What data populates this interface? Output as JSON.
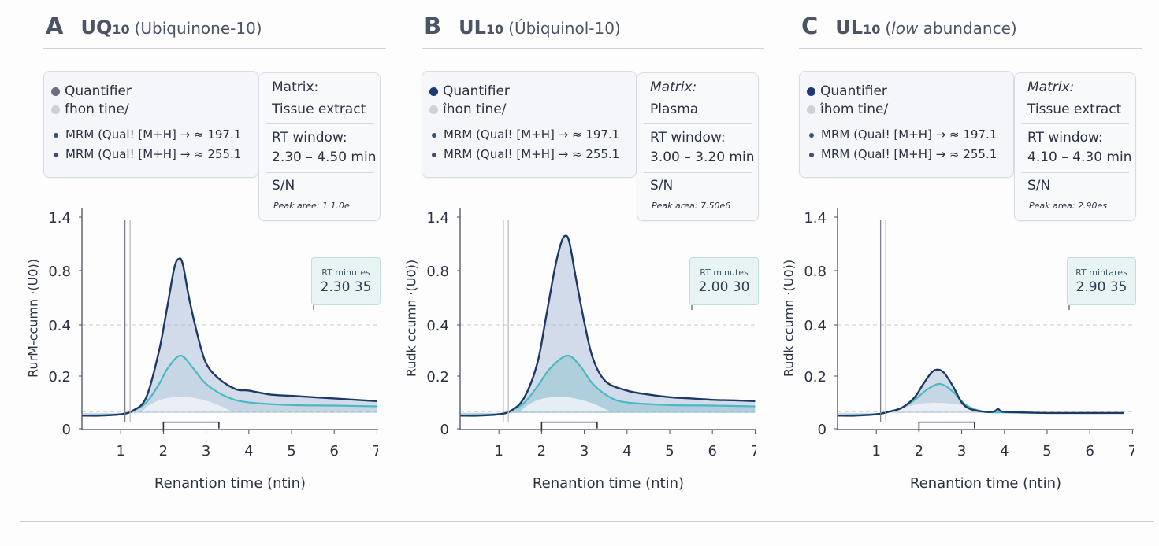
{
  "colors": {
    "quantifier": "#1d3a66",
    "qualifier": "#4bb8c4",
    "legend_dot_a": "#6b7080",
    "legend_dot_bc": "#1f3a6e",
    "pale": "#c9ccd3"
  },
  "panels": [
    {
      "letter": "A",
      "formula": "UQ",
      "formula_sub": "10",
      "name_prefix": "(Ubiquinone-10)",
      "name_italic": "",
      "name_rest": "",
      "legend": {
        "quantifier": "Quantifier",
        "second": "fhon tine/",
        "mrm1": "MRM (Qual! [M+H] → ≈ 197.1",
        "mrm2": "MRM (Qual! [M+H] → ≈ 255.1"
      },
      "info": {
        "matrix_label": "Matrix:",
        "matrix_italic": false,
        "matrix_value": "Tissue extract",
        "rt_label": "RT window:",
        "rt_value": "2.30 – 4.50 min",
        "sn_label": "S/N",
        "peak_area": "Peak aree: 1.1.0e"
      },
      "rt_box": {
        "label": "RT minutes",
        "value": "2.30 35"
      }
    },
    {
      "letter": "B",
      "formula": "UL",
      "formula_sub": "10",
      "name_prefix": "(Úbiquinol-10)",
      "name_italic": "",
      "name_rest": "",
      "legend": {
        "quantifier": "Quantifier",
        "second": "îhon tine/",
        "mrm1": "MRM (Qual! [M+H] → ≈ 197.1",
        "mrm2": "MRM (Qual! [M+H] → ≈ 255.1"
      },
      "info": {
        "matrix_label": "Matrix:",
        "matrix_italic": true,
        "matrix_value": "Plasma",
        "rt_label": "RT window:",
        "rt_value": "3.00 – 3.20 min",
        "sn_label": "S/N",
        "peak_area": "Peak area: 7.50e6"
      },
      "rt_box": {
        "label": "RT minutes",
        "value": "2.00 30"
      }
    },
    {
      "letter": "C",
      "formula": "UL",
      "formula_sub": "10",
      "name_prefix": "(",
      "name_italic": "low",
      "name_rest": " abundance)",
      "legend": {
        "quantifier": "Quantifier",
        "second": "îhom tine/",
        "mrm1": "MRM (Qual! [M+H] → ≈ 197.1",
        "mrm2": "MRM (Qual! [M+H] → ≈ 255.1"
      },
      "info": {
        "matrix_label": "Matrix:",
        "matrix_italic": true,
        "matrix_value": "Tissue extract",
        "rt_label": "RT window:",
        "rt_value": "4.10 – 4.30 min",
        "sn_label": "S/N",
        "peak_area": "Peak area: 2.90es"
      },
      "rt_box": {
        "label": "RT mintares",
        "value": "2.90 35"
      }
    }
  ],
  "chart_data": [
    {
      "type": "line",
      "xlabel": "Renantion time (ntin)",
      "ylabel": "RurM-ccumn ·(U0))",
      "xlim": [
        0,
        7
      ],
      "xticks": [
        1,
        2,
        3,
        4,
        5,
        6,
        7
      ],
      "yticks": [
        0,
        0.2,
        0.4,
        0.8,
        1.4
      ],
      "ytick_labels": [
        "0",
        "0.2",
        "0.4",
        "0.8",
        "1.4"
      ],
      "grid": "dashed at 0.4",
      "markers": {
        "vlines": [
          1.1,
          1.22
        ],
        "bracket": [
          2.0,
          3.3
        ]
      },
      "series": [
        {
          "x": [
            0.1,
            0.5,
            1.0,
            1.3,
            1.6,
            1.9,
            2.1,
            2.25,
            2.35,
            2.45,
            2.6,
            2.8,
            3.0,
            3.3,
            3.7,
            4.0,
            4.5,
            5,
            5.5,
            6,
            6.5,
            7
          ],
          "y": [
            0.05,
            0.05,
            0.055,
            0.07,
            0.12,
            0.3,
            0.55,
            0.82,
            0.93,
            0.88,
            0.6,
            0.36,
            0.25,
            0.19,
            0.15,
            0.145,
            0.13,
            0.125,
            0.12,
            0.115,
            0.11,
            0.105
          ]
        },
        {
          "x": [
            0.1,
            1.0,
            1.3,
            1.6,
            1.9,
            2.1,
            2.4,
            2.7,
            3.0,
            3.5,
            4,
            5,
            6,
            7
          ],
          "y": [
            0.05,
            0.055,
            0.07,
            0.1,
            0.17,
            0.23,
            0.28,
            0.23,
            0.17,
            0.12,
            0.1,
            0.09,
            0.088,
            0.085
          ]
        }
      ]
    },
    {
      "type": "line",
      "xlabel": "Renantion time (ntin)",
      "ylabel": "Rudk ccumn ·(U0))",
      "xlim": [
        0,
        7
      ],
      "xticks": [
        1,
        2,
        3,
        4,
        5,
        6,
        7
      ],
      "yticks": [
        0,
        0.2,
        0.4,
        0.8,
        1.4
      ],
      "ytick_labels": [
        "0",
        "0.2",
        "0.4",
        "0.8",
        "1.4"
      ],
      "grid": "dashed at 0.4",
      "markers": {
        "vlines": [
          1.1,
          1.22
        ],
        "bracket": [
          2.0,
          3.3
        ]
      },
      "series": [
        {
          "x": [
            0.1,
            0.5,
            1.0,
            1.3,
            1.6,
            1.9,
            2.1,
            2.3,
            2.45,
            2.55,
            2.65,
            2.8,
            3.0,
            3.2,
            3.5,
            4.0,
            4.5,
            5,
            5.5,
            6,
            6.5,
            7
          ],
          "y": [
            0.05,
            0.05,
            0.055,
            0.07,
            0.12,
            0.25,
            0.45,
            0.8,
            1.1,
            1.19,
            1.12,
            0.75,
            0.42,
            0.27,
            0.18,
            0.145,
            0.13,
            0.12,
            0.115,
            0.11,
            0.108,
            0.105
          ]
        },
        {
          "x": [
            0.1,
            1.0,
            1.3,
            1.6,
            1.9,
            2.2,
            2.6,
            2.9,
            3.2,
            3.6,
            4,
            5,
            6,
            7
          ],
          "y": [
            0.05,
            0.055,
            0.07,
            0.1,
            0.16,
            0.23,
            0.28,
            0.24,
            0.17,
            0.12,
            0.1,
            0.09,
            0.088,
            0.085
          ]
        }
      ]
    },
    {
      "type": "line",
      "xlabel": "Renantion time (ntin)",
      "ylabel": "Rudk ccumn ·(U0))",
      "xlim": [
        0,
        7
      ],
      "xticks": [
        1,
        2,
        3,
        4,
        5,
        6,
        7
      ],
      "yticks": [
        0,
        0.2,
        0.4,
        0.8,
        1.4
      ],
      "ytick_labels": [
        "0",
        "0.2",
        "0.4",
        "0.8",
        "1.4"
      ],
      "grid": "dashed at 0.4",
      "markers": {
        "vlines": [
          1.1,
          1.22
        ],
        "bracket": [
          2.0,
          3.3
        ]
      },
      "series": [
        {
          "x": [
            0.1,
            0.5,
            1.0,
            1.3,
            1.6,
            1.9,
            2.1,
            2.3,
            2.45,
            2.6,
            2.8,
            3.0,
            3.2,
            3.5,
            3.75,
            3.85,
            3.95,
            4.3,
            5,
            6,
            6.8
          ],
          "y": [
            0.05,
            0.05,
            0.055,
            0.065,
            0.08,
            0.12,
            0.17,
            0.215,
            0.225,
            0.21,
            0.16,
            0.1,
            0.075,
            0.065,
            0.065,
            0.075,
            0.065,
            0.063,
            0.06,
            0.06,
            0.06
          ]
        },
        {
          "x": [
            0.1,
            1.0,
            1.3,
            1.6,
            1.9,
            2.2,
            2.5,
            2.8,
            3.1,
            3.5,
            4,
            5,
            6,
            6.8
          ],
          "y": [
            0.05,
            0.055,
            0.065,
            0.08,
            0.11,
            0.15,
            0.17,
            0.14,
            0.09,
            0.065,
            0.062,
            0.06,
            0.06,
            0.06
          ]
        }
      ]
    }
  ]
}
